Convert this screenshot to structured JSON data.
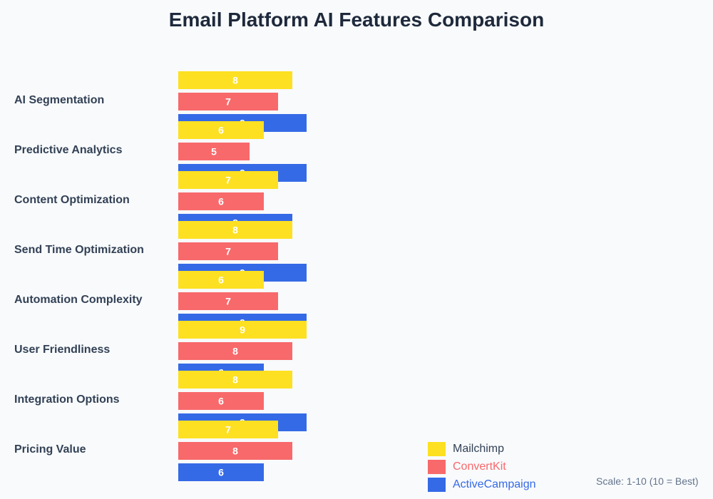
{
  "title": "Email Platform AI Features Comparison",
  "scale_note": "Scale: 1-10 (10 = Best)",
  "legend": [
    {
      "label": "Mailchimp",
      "color": "#fde021",
      "text_color": "#334155"
    },
    {
      "label": "ConvertKit",
      "color": "#f8696b",
      "text_color": "#f8696b"
    },
    {
      "label": "ActiveCampaign",
      "color": "#356ae6",
      "text_color": "#356ae6"
    }
  ],
  "chart_data": {
    "type": "bar",
    "orientation": "horizontal",
    "title": "Email Platform AI Features Comparison",
    "categories": [
      "AI Segmentation",
      "Predictive Analytics",
      "Content Optimization",
      "Send Time Optimization",
      "Automation Complexity",
      "User Friendliness",
      "Integration Options",
      "Pricing Value"
    ],
    "series": [
      {
        "name": "Mailchimp",
        "color": "#fde021",
        "values": [
          8,
          6,
          7,
          8,
          6,
          9,
          8,
          7
        ]
      },
      {
        "name": "ConvertKit",
        "color": "#f8696b",
        "values": [
          7,
          5,
          6,
          7,
          7,
          8,
          6,
          8
        ]
      },
      {
        "name": "ActiveCampaign",
        "color": "#356ae6",
        "values": [
          9,
          9,
          8,
          9,
          9,
          6,
          9,
          6
        ]
      }
    ],
    "xlim": [
      0,
      10
    ],
    "grid": false,
    "legend_position": "bottom-center"
  }
}
